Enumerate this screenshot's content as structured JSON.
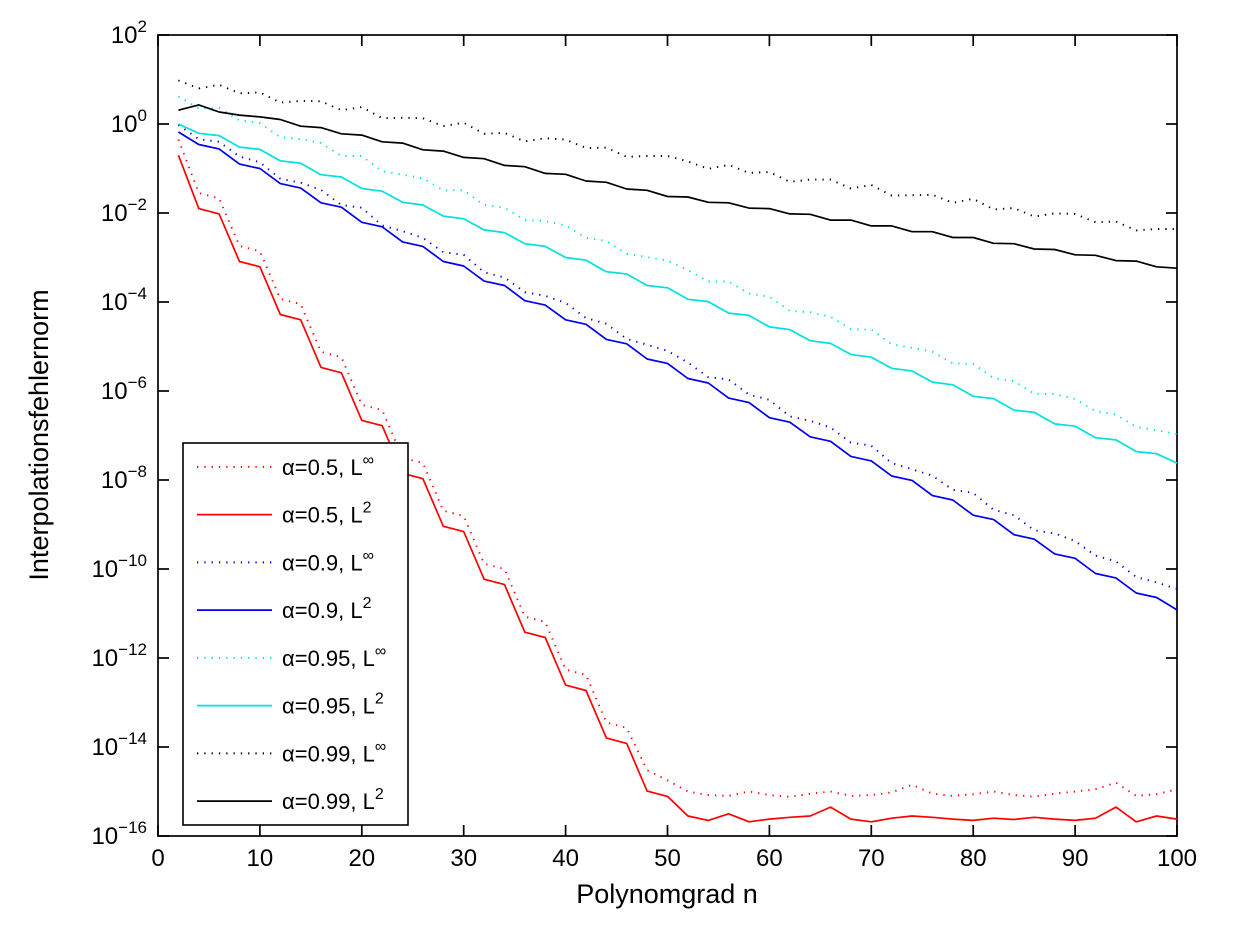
{
  "figure": {
    "background": "#ffffff"
  },
  "axes": {
    "xlabel": "Polynomgrad n",
    "ylabel": "Interpolationsfehlernorm",
    "x_ticks": [
      0,
      10,
      20,
      30,
      40,
      50,
      60,
      70,
      80,
      90,
      100
    ],
    "y_tick_mantissa": "10",
    "y_tick_exponents": [
      2,
      0,
      -2,
      -4,
      -6,
      -8,
      -10,
      -12,
      -14,
      -16
    ]
  },
  "legend": {
    "position": "lower-left",
    "items": [
      {
        "label_main": "α=0.5, L",
        "label_sup": "∞",
        "style": "dotted",
        "color": "#ff0000"
      },
      {
        "label_main": "α=0.5, L",
        "label_sup": "2",
        "style": "solid",
        "color": "#ff0000"
      },
      {
        "label_main": "α=0.9, L",
        "label_sup": "∞",
        "style": "dotted",
        "color": "#0000ee"
      },
      {
        "label_main": "α=0.9, L",
        "label_sup": "2",
        "style": "solid",
        "color": "#0000ee"
      },
      {
        "label_main": "α=0.95, L",
        "label_sup": "∞",
        "style": "dotted",
        "color": "#00e0e0"
      },
      {
        "label_main": "α=0.95, L",
        "label_sup": "2",
        "style": "solid",
        "color": "#00e0e0"
      },
      {
        "label_main": "α=0.99, L",
        "label_sup": "∞",
        "style": "dotted",
        "color": "#000000"
      },
      {
        "label_main": "α=0.99, L",
        "label_sup": "2",
        "style": "solid",
        "color": "#000000"
      }
    ]
  },
  "chart_data": {
    "type": "line",
    "title": "",
    "xlabel": "Polynomgrad n",
    "ylabel": "Interpolationsfehlernorm",
    "x_range": [
      0,
      100
    ],
    "y_scale": "log10",
    "y_log10_range": [
      2,
      -16
    ],
    "grid": false,
    "legend_position": "lower-left",
    "x": [
      2,
      4,
      6,
      8,
      10,
      12,
      14,
      16,
      18,
      20,
      22,
      24,
      26,
      28,
      30,
      32,
      34,
      36,
      38,
      40,
      42,
      44,
      46,
      48,
      50,
      52,
      54,
      56,
      58,
      60,
      62,
      64,
      66,
      68,
      70,
      72,
      74,
      76,
      78,
      80,
      82,
      84,
      86,
      88,
      90,
      92,
      94,
      96,
      98,
      100
    ],
    "series": [
      {
        "name": "α=0.5, L∞",
        "color": "#ff0000",
        "style": "dotted",
        "log10_values": [
          -0.35,
          -1.55,
          -1.67,
          -2.74,
          -2.86,
          -3.93,
          -4.05,
          -5.12,
          -5.24,
          -6.31,
          -6.43,
          -7.5,
          -7.62,
          -8.69,
          -8.81,
          -9.88,
          -10.0,
          -11.07,
          -11.19,
          -12.26,
          -12.38,
          -13.45,
          -13.57,
          -14.52,
          -14.75,
          -15.0,
          -15.08,
          -15.1,
          -15.0,
          -15.08,
          -15.12,
          -15.05,
          -15.0,
          -15.1,
          -15.08,
          -15.02,
          -14.85,
          -15.05,
          -15.1,
          -15.06,
          -15.0,
          -15.08,
          -15.12,
          -15.05,
          -15.0,
          -14.95,
          -14.8,
          -15.1,
          -15.06,
          -14.95
        ]
      },
      {
        "name": "α=0.5, L²",
        "color": "#ff0000",
        "style": "solid",
        "log10_values": [
          -0.7,
          -1.9,
          -2.02,
          -3.09,
          -3.21,
          -4.28,
          -4.4,
          -5.47,
          -5.59,
          -6.66,
          -6.78,
          -7.85,
          -7.97,
          -9.04,
          -9.16,
          -10.23,
          -10.35,
          -11.42,
          -11.54,
          -12.61,
          -12.73,
          -13.8,
          -13.92,
          -14.99,
          -15.11,
          -15.55,
          -15.65,
          -15.5,
          -15.68,
          -15.62,
          -15.58,
          -15.55,
          -15.35,
          -15.62,
          -15.68,
          -15.6,
          -15.55,
          -15.58,
          -15.62,
          -15.65,
          -15.6,
          -15.63,
          -15.58,
          -15.62,
          -15.65,
          -15.6,
          -15.35,
          -15.68,
          -15.55,
          -15.62
        ]
      },
      {
        "name": "α=0.9, L∞",
        "color": "#0000ee",
        "style": "dotted",
        "log10_values": [
          -0.02,
          -0.34,
          -0.4,
          -0.73,
          -0.86,
          -1.23,
          -1.32,
          -1.48,
          -1.82,
          -1.88,
          -2.28,
          -2.41,
          -2.56,
          -2.88,
          -2.94,
          -3.33,
          -3.45,
          -3.78,
          -3.86,
          -4.02,
          -4.36,
          -4.49,
          -4.83,
          -4.96,
          -5.1,
          -5.36,
          -5.69,
          -5.74,
          -6.08,
          -6.2,
          -6.57,
          -6.67,
          -6.82,
          -7.16,
          -7.23,
          -7.62,
          -7.76,
          -7.9,
          -8.22,
          -8.29,
          -8.67,
          -8.79,
          -9.13,
          -9.2,
          -9.37,
          -9.7,
          -9.83,
          -10.18,
          -10.3,
          -10.45
        ]
      },
      {
        "name": "α=0.9, L²",
        "color": "#0000ee",
        "style": "solid",
        "log10_values": [
          -0.18,
          -0.46,
          -0.56,
          -0.9,
          -1.0,
          -1.34,
          -1.44,
          -1.77,
          -1.87,
          -2.21,
          -2.31,
          -2.65,
          -2.75,
          -3.09,
          -3.19,
          -3.53,
          -3.63,
          -3.97,
          -4.07,
          -4.4,
          -4.5,
          -4.84,
          -4.94,
          -5.28,
          -5.38,
          -5.72,
          -5.82,
          -6.16,
          -6.26,
          -6.6,
          -6.7,
          -7.03,
          -7.13,
          -7.47,
          -7.57,
          -7.91,
          -8.01,
          -8.35,
          -8.45,
          -8.79,
          -8.89,
          -9.23,
          -9.33,
          -9.66,
          -9.76,
          -10.1,
          -10.2,
          -10.54,
          -10.64,
          -10.92
        ]
      },
      {
        "name": "α=0.95, L∞",
        "color": "#00e0e0",
        "style": "dotted",
        "log10_values": [
          0.62,
          0.35,
          0.36,
          0.08,
          0.02,
          -0.3,
          -0.34,
          -0.43,
          -0.72,
          -0.72,
          -1.06,
          -1.14,
          -1.22,
          -1.49,
          -1.49,
          -1.82,
          -1.88,
          -2.16,
          -2.18,
          -2.28,
          -2.56,
          -2.63,
          -2.92,
          -2.99,
          -3.07,
          -3.28,
          -3.54,
          -3.54,
          -3.81,
          -3.88,
          -4.2,
          -4.23,
          -4.33,
          -4.61,
          -4.62,
          -4.95,
          -5.03,
          -5.12,
          -5.38,
          -5.39,
          -5.71,
          -5.78,
          -6.06,
          -6.07,
          -6.18,
          -6.45,
          -6.53,
          -6.81,
          -6.88,
          -6.97
        ]
      },
      {
        "name": "α=0.95, L²",
        "color": "#00e0e0",
        "style": "solid",
        "log10_values": [
          0.0,
          -0.21,
          -0.26,
          -0.52,
          -0.57,
          -0.83,
          -0.88,
          -1.14,
          -1.19,
          -1.45,
          -1.51,
          -1.76,
          -1.82,
          -2.07,
          -2.13,
          -2.38,
          -2.44,
          -2.69,
          -2.75,
          -3.0,
          -3.06,
          -3.32,
          -3.37,
          -3.63,
          -3.68,
          -3.94,
          -3.99,
          -4.25,
          -4.3,
          -4.56,
          -4.62,
          -4.87,
          -4.93,
          -5.18,
          -5.24,
          -5.49,
          -5.55,
          -5.8,
          -5.86,
          -6.12,
          -6.17,
          -6.43,
          -6.48,
          -6.74,
          -6.79,
          -7.05,
          -7.1,
          -7.36,
          -7.41,
          -7.62
        ]
      },
      {
        "name": "α=0.99, L∞",
        "color": "#000000",
        "style": "dotted",
        "log10_values": [
          0.98,
          0.8,
          0.88,
          0.69,
          0.71,
          0.48,
          0.52,
          0.51,
          0.31,
          0.38,
          0.13,
          0.14,
          0.13,
          -0.05,
          0.03,
          -0.22,
          -0.2,
          -0.39,
          -0.32,
          -0.35,
          -0.54,
          -0.53,
          -0.74,
          -0.72,
          -0.72,
          -0.84,
          -1.01,
          -0.92,
          -1.1,
          -1.08,
          -1.3,
          -1.25,
          -1.25,
          -1.45,
          -1.37,
          -1.61,
          -1.6,
          -1.59,
          -1.77,
          -1.68,
          -1.92,
          -1.89,
          -2.08,
          -2.01,
          -2.02,
          -2.21,
          -2.19,
          -2.39,
          -2.36,
          -2.36
        ]
      },
      {
        "name": "α=0.99, L²",
        "color": "#000000",
        "style": "solid",
        "log10_values": [
          0.31,
          0.43,
          0.27,
          0.2,
          0.16,
          0.1,
          -0.05,
          -0.08,
          -0.22,
          -0.25,
          -0.4,
          -0.43,
          -0.58,
          -0.61,
          -0.75,
          -0.78,
          -0.93,
          -0.96,
          -1.11,
          -1.13,
          -1.28,
          -1.31,
          -1.46,
          -1.49,
          -1.63,
          -1.64,
          -1.76,
          -1.77,
          -1.89,
          -1.9,
          -2.02,
          -2.03,
          -2.16,
          -2.16,
          -2.29,
          -2.29,
          -2.42,
          -2.42,
          -2.55,
          -2.55,
          -2.68,
          -2.69,
          -2.81,
          -2.82,
          -2.94,
          -2.95,
          -3.07,
          -3.08,
          -3.21,
          -3.24
        ]
      }
    ]
  }
}
